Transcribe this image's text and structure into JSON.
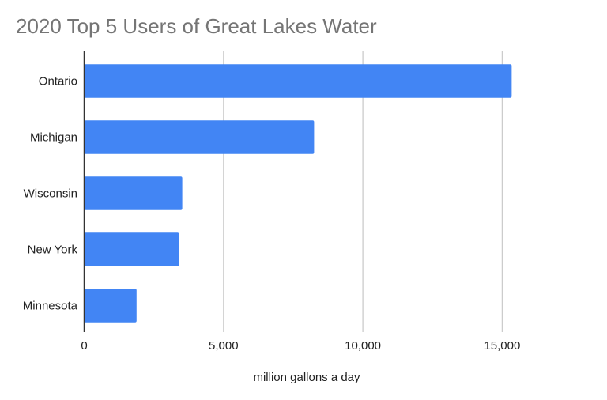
{
  "chart_data": {
    "type": "bar",
    "orientation": "horizontal",
    "title": "2020 Top 5 Users of Great Lakes Water",
    "xlabel": "million gallons a day",
    "ylabel": "",
    "categories": [
      "Ontario",
      "Michigan",
      "Wisconsin",
      "New York",
      "Minnesota"
    ],
    "values": [
      15340,
      8250,
      3520,
      3400,
      1880
    ],
    "xlim": [
      0,
      18000
    ],
    "xticks": [
      0,
      5000,
      10000,
      15000
    ],
    "xtick_labels": [
      "0",
      "5,000",
      "10,000",
      "15,000"
    ],
    "grid": true,
    "legend": "none",
    "colors": {
      "bar": "#4285f4",
      "title": "#757575",
      "grid": "#cccccc",
      "axis": "#333333",
      "text": "#222222"
    }
  }
}
